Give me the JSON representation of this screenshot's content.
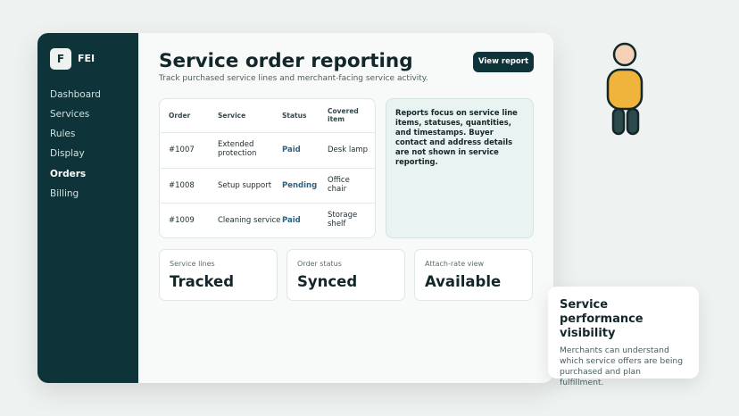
{
  "brand": {
    "logo": "F",
    "name": "FEI"
  },
  "nav": [
    "Dashboard",
    "Services",
    "Rules",
    "Display",
    "Orders",
    "Billing"
  ],
  "header": {
    "title": "Service order reporting",
    "subtitle": "Track purchased service lines and merchant-facing service activity.",
    "button": "View report"
  },
  "table": {
    "columns": [
      "Order",
      "Service",
      "Status",
      "Covered item"
    ],
    "rows": [
      [
        "#1007",
        "Extended protection",
        "Paid",
        "Desk lamp"
      ],
      [
        "#1008",
        "Setup support",
        "Pending",
        "Office chair"
      ],
      [
        "#1009",
        "Cleaning service",
        "Paid",
        "Storage shelf"
      ]
    ]
  },
  "note": "Reports focus on service line items, statuses, quantities, and timestamps. Buyer contact and address details are not shown in service reporting.",
  "stats": [
    {
      "label": "Service lines",
      "value": "Tracked"
    },
    {
      "label": "Order status",
      "value": "Synced"
    },
    {
      "label": "Attach-rate view",
      "value": "Available"
    }
  ],
  "callout": {
    "title": "Service performance visibility",
    "text": "Merchants can understand which service offers are being purchased and plan fulfillment."
  }
}
